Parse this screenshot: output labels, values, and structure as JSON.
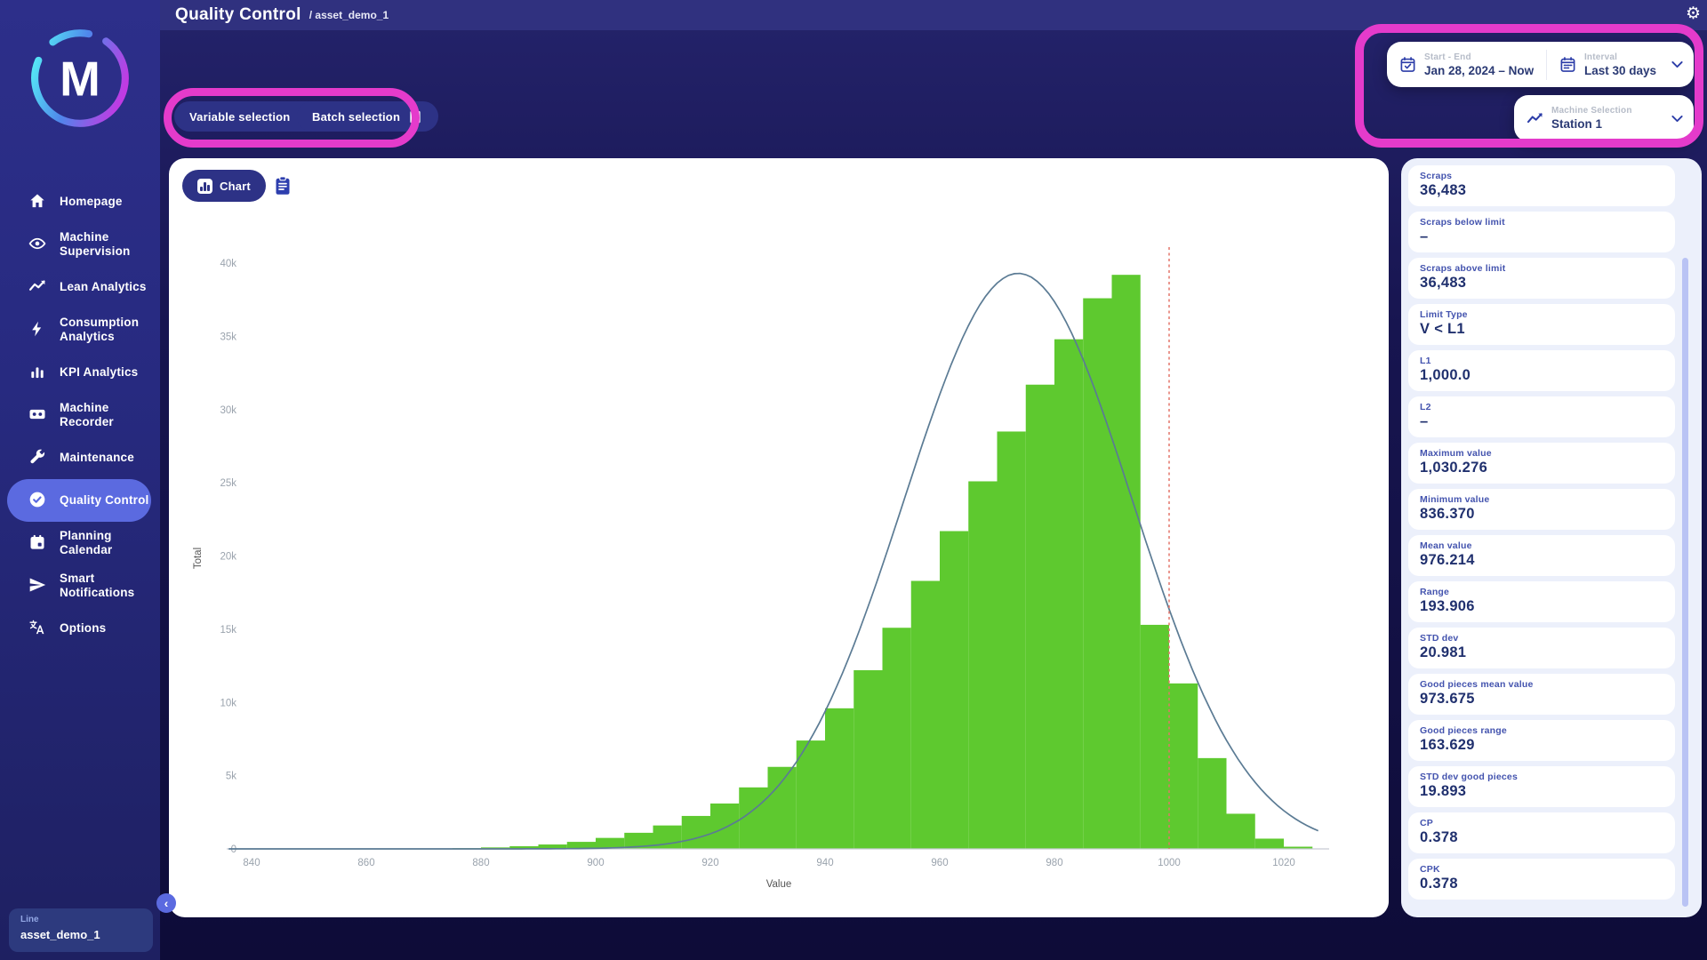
{
  "topbar": {
    "title": "Quality Control",
    "breadcrumb": "/ asset_demo_1"
  },
  "sidebar": {
    "logo_letter": "M",
    "items": [
      {
        "label": "Homepage",
        "icon": "home-icon",
        "active": false
      },
      {
        "label": "Machine Supervision",
        "icon": "eye-icon",
        "active": false
      },
      {
        "label": "Lean Analytics",
        "icon": "trend-icon",
        "active": false
      },
      {
        "label": "Consumption Analytics",
        "icon": "bolt-icon",
        "active": false
      },
      {
        "label": "KPI Analytics",
        "icon": "bar-chart-icon",
        "active": false
      },
      {
        "label": "Machine Recorder",
        "icon": "cassette-icon",
        "active": false
      },
      {
        "label": "Maintenance",
        "icon": "wrench-icon",
        "active": false
      },
      {
        "label": "Quality Control",
        "icon": "check-circle-icon",
        "active": true
      },
      {
        "label": "Planning Calendar",
        "icon": "calendar-icon",
        "active": false
      },
      {
        "label": "Smart Notifications",
        "icon": "send-icon",
        "active": false
      },
      {
        "label": "Options",
        "icon": "translate-icon",
        "active": false
      }
    ]
  },
  "toolbar": {
    "variable_selection_label": "Variable selection",
    "batch_selection_label": "Batch selection",
    "chart_button_label": "Chart"
  },
  "filters": {
    "date_range": {
      "label": "Start - End",
      "value": "Jan 28, 2024 – Now"
    },
    "interval": {
      "label": "Interval",
      "value": "Last 30 days"
    },
    "machine": {
      "label": "Machine Selection",
      "value": "Station 1"
    }
  },
  "stats": {
    "cards": [
      {
        "label": "Scraps",
        "value": "36,483"
      },
      {
        "label": "Scraps below limit",
        "value": "–"
      },
      {
        "label": "Scraps above limit",
        "value": "36,483"
      },
      {
        "label": "Limit Type",
        "value": "V < L1"
      },
      {
        "label": "L1",
        "value": "1,000.0"
      },
      {
        "label": "L2",
        "value": "–"
      },
      {
        "label": "Maximum value",
        "value": "1,030.276"
      },
      {
        "label": "Minimum value",
        "value": "836.370"
      },
      {
        "label": "Mean value",
        "value": "976.214"
      },
      {
        "label": "Range",
        "value": "193.906"
      },
      {
        "label": "STD dev",
        "value": "20.981"
      },
      {
        "label": "Good pieces mean value",
        "value": "973.675"
      },
      {
        "label": "Good pieces range",
        "value": "163.629"
      },
      {
        "label": "STD dev good pieces",
        "value": "19.893"
      },
      {
        "label": "CP",
        "value": "0.378"
      },
      {
        "label": "CPK",
        "value": "0.378"
      }
    ]
  },
  "legend": {
    "label": "Line",
    "value": "asset_demo_1"
  },
  "colors": {
    "bar_green": "#5ec92f",
    "curve_slate": "#5b7b94",
    "limit_red": "#e4756a",
    "annotation_pink": "#e43bcb",
    "accent_indigo": "#2d3286",
    "active_item": "#5b6ae0"
  },
  "chart_data": {
    "type": "histogram",
    "xlabel": "Value",
    "ylabel": "Total",
    "xlim": [
      836,
      1026
    ],
    "ylim": [
      0,
      40000
    ],
    "x_ticks": [
      840,
      860,
      880,
      900,
      920,
      940,
      960,
      980,
      1000,
      1020
    ],
    "y_tick_labels": [
      "0",
      "5k",
      "10k",
      "15k",
      "20k",
      "25k",
      "30k",
      "35k",
      "40k"
    ],
    "y_tick_step": 5000,
    "bin_width": 5,
    "bins_start": [
      870,
      875,
      880,
      885,
      890,
      895,
      900,
      905,
      910,
      915,
      920,
      925,
      930,
      935,
      940,
      945,
      950,
      955,
      960,
      965,
      970,
      975,
      980,
      985,
      990,
      995,
      1000,
      1005,
      1010,
      1015,
      1020
    ],
    "counts": [
      25,
      50,
      100,
      180,
      300,
      480,
      750,
      1100,
      1600,
      2250,
      3100,
      4200,
      5600,
      7400,
      9600,
      12200,
      15100,
      18300,
      21700,
      25100,
      28500,
      31700,
      34800,
      37600,
      39200,
      15300,
      11300,
      6200,
      2400,
      700,
      150
    ],
    "bar_color": "#5ec92f",
    "curve": {
      "type": "normal",
      "mean": 973.675,
      "std": 19.893,
      "peak": 39300,
      "color": "#5b7b94"
    },
    "limit_line": {
      "x": 1000,
      "color": "#e4756a",
      "style": "dashed"
    },
    "grid": false,
    "legend_position": "bottom-left-floating"
  }
}
